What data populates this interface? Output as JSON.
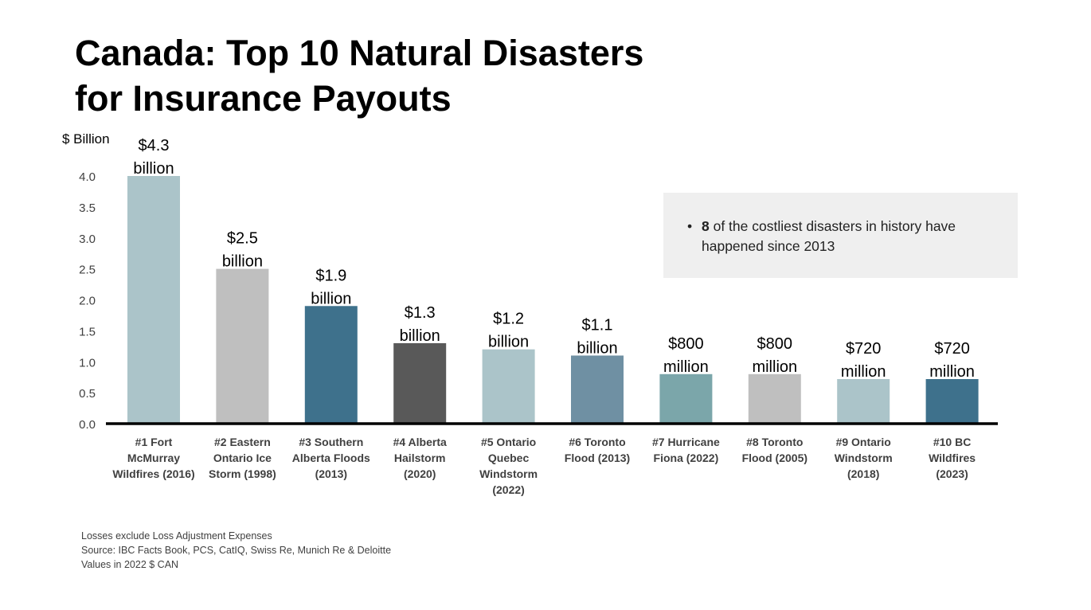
{
  "title": "Canada: Top 10 Natural Disasters\nfor Insurance Payouts",
  "note": {
    "bold": "8",
    "text": " of the costliest disasters in history have happened since 2013"
  },
  "footnotes": [
    "Losses exclude Loss Adjustment Expenses",
    "Source: IBC  Facts Book, PCS,  CatIQ, Swiss Re, Munich Re & Deloitte",
    "Values in 2022 $ CAN"
  ],
  "chart_data": {
    "type": "bar",
    "ylabel": "$ Billion",
    "ylim": [
      0,
      4.0
    ],
    "yticks": [
      "0.0",
      "0.5",
      "1.0",
      "1.5",
      "2.0",
      "2.5",
      "3.0",
      "3.5",
      "4.0"
    ],
    "grid": false,
    "categories": [
      "#1 Fort\nMcMurray\nWildfires (2016)",
      "#2 Eastern\nOntario Ice\nStorm (1998)",
      "#3 Southern\nAlberta Floods\n(2013)",
      "#4 Alberta\nHailstorm\n(2020)",
      "#5 Ontario\nQuebec\nWindstorm\n(2022)",
      "#6 Toronto\nFlood (2013)",
      "#7 Hurricane\nFiona (2022)",
      "#8 Toronto\nFlood (2005)",
      "#9 Ontario\nWindstorm\n(2018)",
      "#10 BC\nWildfires\n(2023)"
    ],
    "values": [
      4.3,
      2.5,
      1.9,
      1.3,
      1.2,
      1.1,
      0.8,
      0.8,
      0.72,
      0.72
    ],
    "data_labels": [
      "$4.3\nbillion",
      "$2.5\nbillion",
      "$1.9\nbillion",
      "$1.3\nbillion",
      "$1.2\nbillion",
      "$1.1\nbillion",
      "$800\nmillion",
      "$800\nmillion",
      "$720\nmillion",
      "$720\nmillion"
    ],
    "colors": [
      "#abc4c9",
      "#bfbfbf",
      "#3e718c",
      "#595959",
      "#abc4c9",
      "#6f90a3",
      "#7ba6aa",
      "#bfbfbf",
      "#abc4c9",
      "#3e718c"
    ]
  }
}
